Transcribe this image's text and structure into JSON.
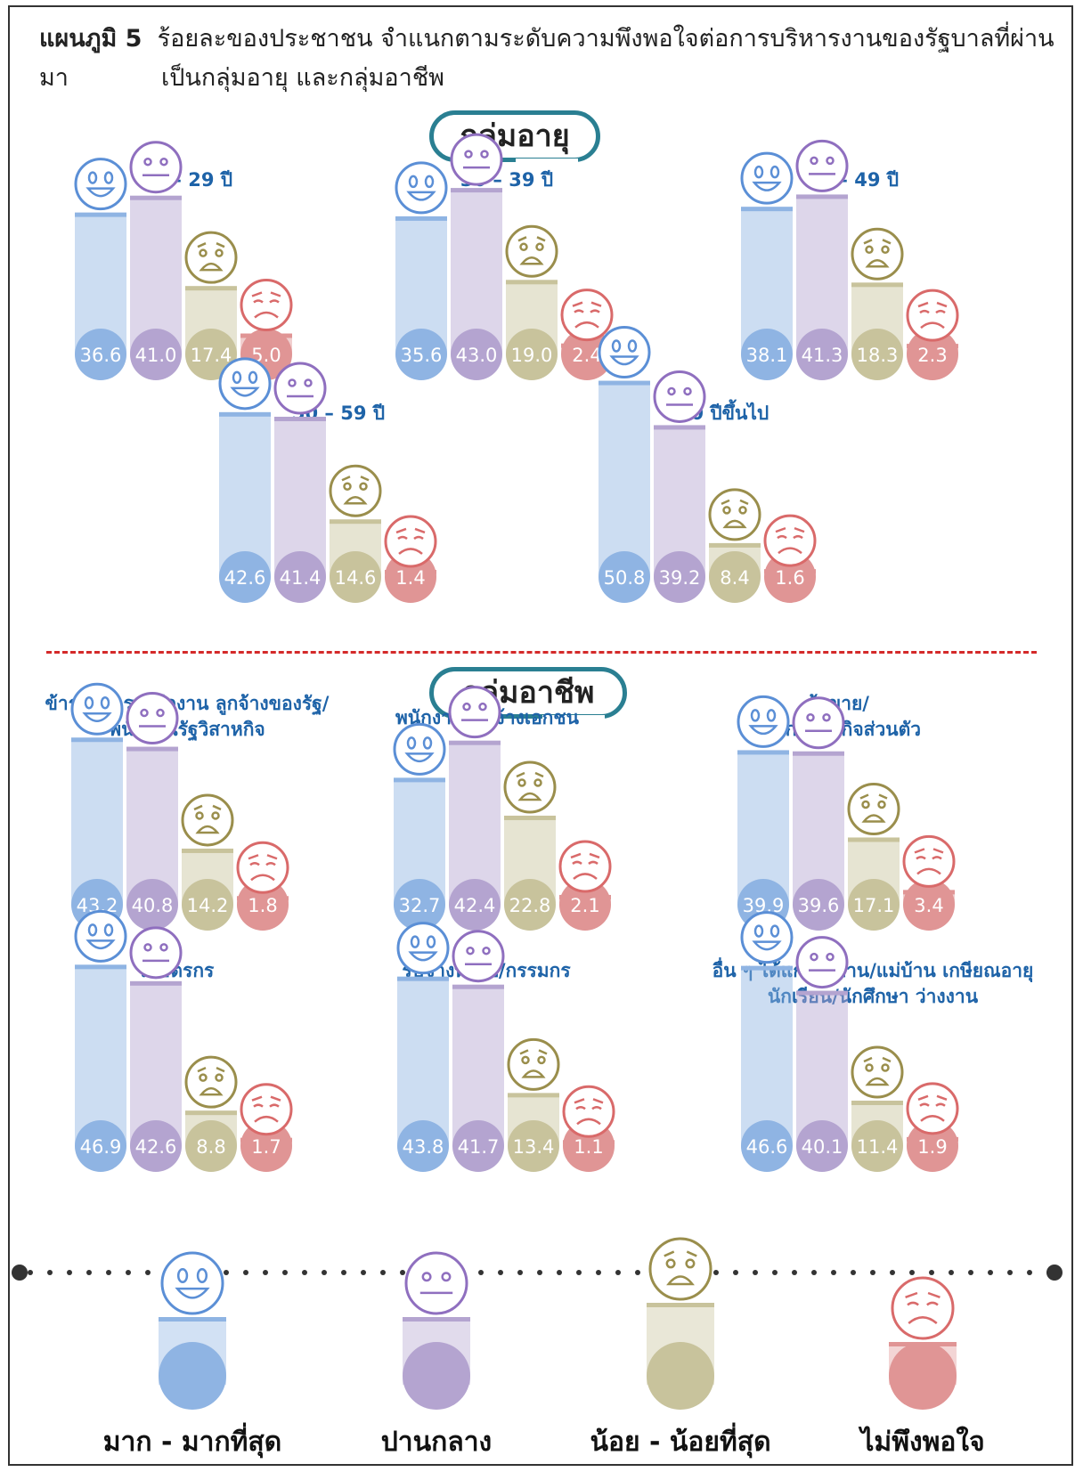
{
  "header": {
    "figure_no": "แผนภูมิ 5",
    "title_line1": "ร้อยละของประชาชน  จำแนกตามระดับความพึงพอใจต่อการบริหารงานของรัฐบาลที่ผ่านมา",
    "title_line2": "เป็นกลุ่มอายุ และกลุ่มอาชีพ"
  },
  "sections": {
    "age": "กลุ่มอายุ",
    "occupation": "กลุ่มอาชีพ"
  },
  "colors": {
    "most": "#8fb4e3",
    "moderate": "#b4a4d0",
    "least": "#c8c39c",
    "dissatisfied": "#e09595",
    "most_icon": "#5b8fd6",
    "moderate_icon": "#8f6fbf",
    "least_icon": "#9a8e4c",
    "dissatisfied_icon": "#d96a6a"
  },
  "legend": {
    "most": "มาก - มากที่สุด",
    "moderate": "ปานกลาง",
    "least": "น้อย - น้อยที่สุด",
    "dissatisfied": "ไม่พึงพอใจ"
  },
  "chart_data": [
    {
      "type": "bar",
      "group": "age",
      "title": "15 – 29 ปี",
      "categories": [
        "มาก - มากที่สุด",
        "ปานกลาง",
        "น้อย - น้อยที่สุด",
        "ไม่พึงพอใจ"
      ],
      "values": [
        36.6,
        41.0,
        17.4,
        5.0
      ]
    },
    {
      "type": "bar",
      "group": "age",
      "title": "30 – 39 ปี",
      "categories": [
        "มาก - มากที่สุด",
        "ปานกลาง",
        "น้อย - น้อยที่สุด",
        "ไม่พึงพอใจ"
      ],
      "values": [
        35.6,
        43.0,
        19.0,
        2.4
      ]
    },
    {
      "type": "bar",
      "group": "age",
      "title": "40 – 49 ปี",
      "categories": [
        "มาก - มากที่สุด",
        "ปานกลาง",
        "น้อย - น้อยที่สุด",
        "ไม่พึงพอใจ"
      ],
      "values": [
        38.1,
        41.3,
        18.3,
        2.3
      ]
    },
    {
      "type": "bar",
      "group": "age",
      "title": "50 – 59 ปี",
      "categories": [
        "มาก - มากที่สุด",
        "ปานกลาง",
        "น้อย - น้อยที่สุด",
        "ไม่พึงพอใจ"
      ],
      "values": [
        42.6,
        41.4,
        14.6,
        1.4
      ]
    },
    {
      "type": "bar",
      "group": "age",
      "title": "60 ปีขึ้นไป",
      "categories": [
        "มาก - มากที่สุด",
        "ปานกลาง",
        "น้อย - น้อยที่สุด",
        "ไม่พึงพอใจ"
      ],
      "values": [
        50.8,
        39.2,
        8.4,
        1.6
      ]
    },
    {
      "type": "bar",
      "group": "occupation",
      "title": "ข้าราชการ พนักงาน ลูกจ้างของรัฐ/\nพนักงานรัฐวิสาหกิจ",
      "categories": [
        "มาก - มากที่สุด",
        "ปานกลาง",
        "น้อย - น้อยที่สุด",
        "ไม่พึงพอใจ"
      ],
      "values": [
        43.2,
        40.8,
        14.2,
        1.8
      ]
    },
    {
      "type": "bar",
      "group": "occupation",
      "title": "พนักงาน/ลูกจ้างเอกชน",
      "categories": [
        "มาก - มากที่สุด",
        "ปานกลาง",
        "น้อย - น้อยที่สุด",
        "ไม่พึงพอใจ"
      ],
      "values": [
        32.7,
        42.4,
        22.8,
        2.1
      ]
    },
    {
      "type": "bar",
      "group": "occupation",
      "title": "ค้าขาย/\nประกอบธุรกิจส่วนตัว",
      "categories": [
        "มาก - มากที่สุด",
        "ปานกลาง",
        "น้อย - น้อยที่สุด",
        "ไม่พึงพอใจ"
      ],
      "values": [
        39.9,
        39.6,
        17.1,
        3.4
      ]
    },
    {
      "type": "bar",
      "group": "occupation",
      "title": "เกษตรกร",
      "categories": [
        "มาก - มากที่สุด",
        "ปานกลาง",
        "น้อย - น้อยที่สุด",
        "ไม่พึงพอใจ"
      ],
      "values": [
        46.9,
        42.6,
        8.8,
        1.7
      ]
    },
    {
      "type": "bar",
      "group": "occupation",
      "title": "รับจ้างทั่วไป/กรรมกร",
      "categories": [
        "มาก - มากที่สุด",
        "ปานกลาง",
        "น้อย - น้อยที่สุด",
        "ไม่พึงพอใจ"
      ],
      "values": [
        43.8,
        41.7,
        13.4,
        1.1
      ]
    },
    {
      "type": "bar",
      "group": "occupation",
      "title": "อื่น ๆ ได้แก่ พ่อบ้าน/แม่บ้าน เกษียณอายุ\nนักเรียน/นักศึกษา ว่างงาน",
      "categories": [
        "มาก - มากที่สุด",
        "ปานกลาง",
        "น้อย - น้อยที่สุด",
        "ไม่พึงพอใจ"
      ],
      "values": [
        46.6,
        40.1,
        11.4,
        1.9
      ]
    }
  ]
}
